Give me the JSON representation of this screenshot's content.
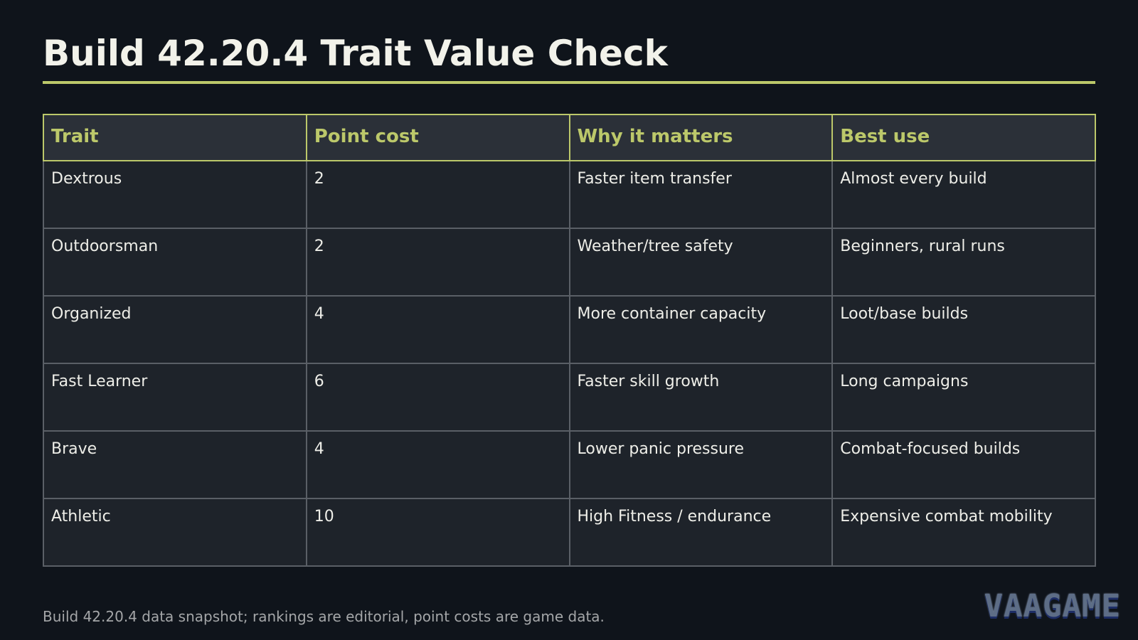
{
  "header": {
    "title": "Build 42.20.4 Trait Value Check"
  },
  "table": {
    "columns": [
      "Trait",
      "Point cost",
      "Why it matters",
      "Best use"
    ],
    "rows": [
      [
        "Dextrous",
        "2",
        "Faster item transfer",
        "Almost every build"
      ],
      [
        "Outdoorsman",
        "2",
        "Weather/tree safety",
        "Beginners, rural runs"
      ],
      [
        "Organized",
        "4",
        "More container capacity",
        "Loot/base builds"
      ],
      [
        "Fast Learner",
        "6",
        "Faster skill growth",
        "Long campaigns"
      ],
      [
        "Brave",
        "4",
        "Lower panic pressure",
        "Combat-focused builds"
      ],
      [
        "Athletic",
        "10",
        "High Fitness / endurance",
        "Expensive combat mobility"
      ]
    ]
  },
  "footer": {
    "note": "Build 42.20.4 data snapshot; rankings are editorial, point costs are game data.",
    "logo_text": "VAAGAME"
  },
  "colors": {
    "background": "#0f141b",
    "accent": "#bcc86a",
    "header_cell": "#2b3038",
    "body_cell": "#1e232a",
    "cell_border": "#5a5f66"
  }
}
